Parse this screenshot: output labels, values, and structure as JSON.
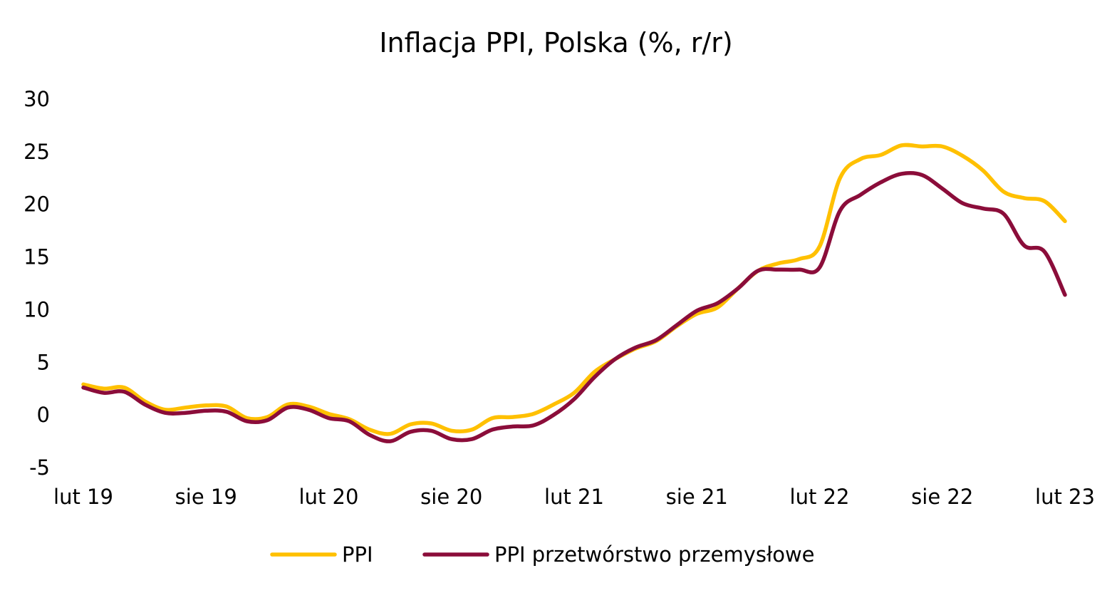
{
  "chart_data": {
    "type": "line",
    "title": "Inflacja PPI, Polska (%, r/r)",
    "xlabel": "",
    "ylabel": "",
    "ylim": [
      -5,
      30
    ],
    "yticks": [
      30,
      25,
      20,
      15,
      10,
      5,
      0,
      -5
    ],
    "xticks": [
      "lut 19",
      "sie 19",
      "lut 20",
      "sie 20",
      "lut 21",
      "sie 21",
      "lut 22",
      "sie 22",
      "lut 23"
    ],
    "x": [
      "lut 19",
      "mar 19",
      "kwi 19",
      "maj 19",
      "cze 19",
      "lip 19",
      "sie 19",
      "wrz 19",
      "paź 19",
      "lis 19",
      "gru 19",
      "sty 20",
      "lut 20",
      "mar 20",
      "kwi 20",
      "maj 20",
      "cze 20",
      "lip 20",
      "sie 20",
      "wrz 20",
      "paź 20",
      "lis 20",
      "gru 20",
      "sty 21",
      "lut 21",
      "mar 21",
      "kwi 21",
      "maj 21",
      "cze 21",
      "lip 21",
      "sie 21",
      "wrz 21",
      "paź 21",
      "lis 21",
      "gru 21",
      "sty 22",
      "lut 22",
      "mar 22",
      "kwi 22",
      "maj 22",
      "cze 22",
      "lip 22",
      "sie 22",
      "wrz 22",
      "paź 22",
      "lis 22",
      "gru 22",
      "sty 23",
      "lut 23"
    ],
    "series": [
      {
        "name": "PPI",
        "color": "#FFC000",
        "values": [
          2.9,
          2.5,
          2.6,
          1.3,
          0.5,
          0.7,
          0.9,
          0.8,
          -0.3,
          -0.2,
          1.0,
          0.8,
          0.1,
          -0.4,
          -1.4,
          -1.8,
          -0.9,
          -0.8,
          -1.5,
          -1.4,
          -0.3,
          -0.2,
          0.1,
          1.0,
          2.1,
          4.1,
          5.3,
          6.3,
          7.0,
          8.4,
          9.6,
          10.2,
          12.0,
          13.7,
          14.4,
          14.8,
          16.0,
          22.5,
          24.3,
          24.7,
          25.6,
          25.5,
          25.5,
          24.6,
          23.2,
          21.2,
          20.6,
          20.3,
          18.4
        ]
      },
      {
        "name": "PPI przetwórstwo przemysłowe",
        "color": "#8B0D3A",
        "values": [
          2.6,
          2.1,
          2.2,
          1.0,
          0.2,
          0.2,
          0.4,
          0.3,
          -0.6,
          -0.5,
          0.7,
          0.5,
          -0.3,
          -0.6,
          -1.9,
          -2.5,
          -1.6,
          -1.5,
          -2.3,
          -2.3,
          -1.4,
          -1.1,
          -1.0,
          0.0,
          1.5,
          3.6,
          5.3,
          6.4,
          7.1,
          8.5,
          9.9,
          10.6,
          12.0,
          13.7,
          13.8,
          13.8,
          14.0,
          19.4,
          20.9,
          22.1,
          22.9,
          22.8,
          21.5,
          20.1,
          19.6,
          19.1,
          16.1,
          15.5,
          11.4
        ]
      }
    ],
    "legend": {
      "position": "bottom",
      "entries": [
        "PPI",
        "PPI przetwórstwo przemysłowe"
      ]
    },
    "grid": false
  }
}
